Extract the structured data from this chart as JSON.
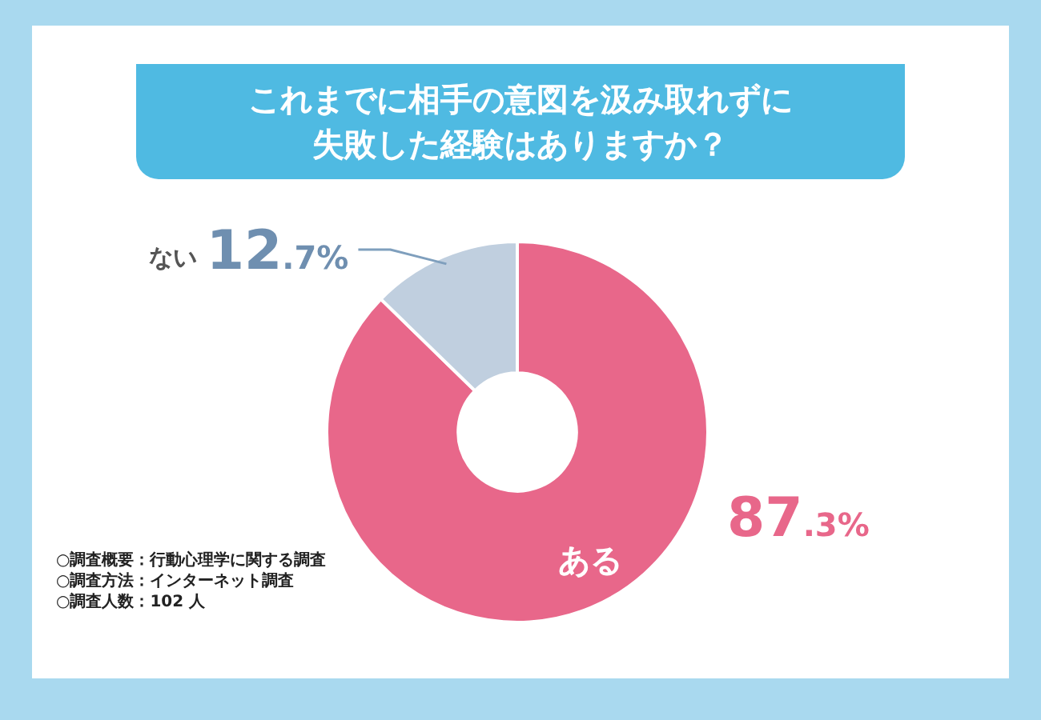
{
  "chart_data": {
    "type": "donut",
    "title": "これまでに相手の意図を汲み取れずに失敗した経験はありますか？",
    "categories": [
      "ある",
      "ない"
    ],
    "values": [
      87.3,
      12.7
    ],
    "colors": [
      "#e8678a",
      "#c0cfdf"
    ],
    "value_labels": [
      "87.3%",
      "12.7%"
    ],
    "legend": false,
    "annotations": [
      "○調査概要：行動心理学に関する調査",
      "○調査方法：インターネット調査",
      "○調査人数：102 人"
    ]
  }
}
